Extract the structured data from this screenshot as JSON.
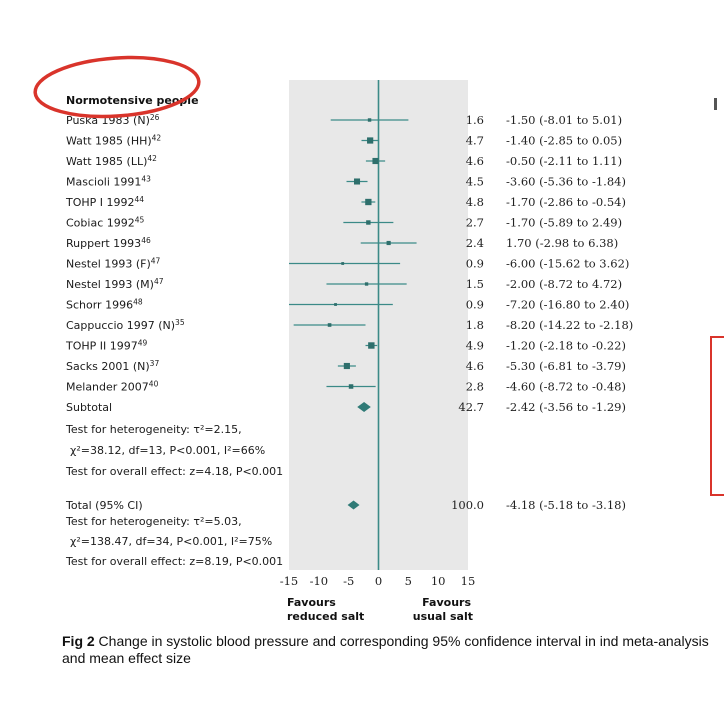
{
  "chart_data": {
    "type": "forest",
    "group_heading": "Normotensive people",
    "x_ticks": [
      -15,
      -10,
      -5,
      0,
      5,
      10,
      15
    ],
    "xlim": [
      -15,
      15
    ],
    "favours_left": [
      "Favours",
      "reduced salt"
    ],
    "favours_right": [
      "Favours",
      "usual salt"
    ],
    "studies": [
      {
        "label": "Puska 1983 (N)",
        "ref": "26",
        "weight": "1.6",
        "estimate": -1.5,
        "ci_low": -8.01,
        "ci_high": 5.01,
        "ci_text": "-1.50 (-8.01 to 5.01)"
      },
      {
        "label": "Watt 1985 (HH)",
        "ref": "42",
        "weight": "4.7",
        "estimate": -1.4,
        "ci_low": -2.85,
        "ci_high": 0.05,
        "ci_text": "-1.40 (-2.85 to 0.05)"
      },
      {
        "label": "Watt 1985 (LL)",
        "ref": "42",
        "weight": "4.6",
        "estimate": -0.5,
        "ci_low": -2.11,
        "ci_high": 1.11,
        "ci_text": "-0.50 (-2.11 to 1.11)"
      },
      {
        "label": "Mascioli 1991",
        "ref": "43",
        "weight": "4.5",
        "estimate": -3.6,
        "ci_low": -5.36,
        "ci_high": -1.84,
        "ci_text": "-3.60 (-5.36 to -1.84)"
      },
      {
        "label": "TOHP I 1992",
        "ref": "44",
        "weight": "4.8",
        "estimate": -1.7,
        "ci_low": -2.86,
        "ci_high": -0.54,
        "ci_text": "-1.70 (-2.86 to -0.54)"
      },
      {
        "label": "Cobiac 1992",
        "ref": "45",
        "weight": "2.7",
        "estimate": -1.7,
        "ci_low": -5.89,
        "ci_high": 2.49,
        "ci_text": "-1.70 (-5.89 to 2.49)"
      },
      {
        "label": "Ruppert 1993",
        "ref": "46",
        "weight": "2.4",
        "estimate": 1.7,
        "ci_low": -2.98,
        "ci_high": 6.38,
        "ci_text": "1.70 (-2.98 to 6.38)"
      },
      {
        "label": "Nestel 1993 (F)",
        "ref": "47",
        "weight": "0.9",
        "estimate": -6.0,
        "ci_low": -15.62,
        "ci_high": 3.62,
        "ci_text": "-6.00 (-15.62 to 3.62)"
      },
      {
        "label": "Nestel 1993 (M)",
        "ref": "47",
        "weight": "1.5",
        "estimate": -2.0,
        "ci_low": -8.72,
        "ci_high": 4.72,
        "ci_text": "-2.00 (-8.72 to 4.72)"
      },
      {
        "label": "Schorr 1996",
        "ref": "48",
        "weight": "0.9",
        "estimate": -7.2,
        "ci_low": -16.8,
        "ci_high": 2.4,
        "ci_text": "-7.20 (-16.80 to 2.40)"
      },
      {
        "label": "Cappuccio 1997 (N)",
        "ref": "35",
        "weight": "1.8",
        "estimate": -8.2,
        "ci_low": -14.22,
        "ci_high": -2.18,
        "ci_text": "-8.20 (-14.22 to -2.18)"
      },
      {
        "label": "TOHP II 1997",
        "ref": "49",
        "weight": "4.9",
        "estimate": -1.2,
        "ci_low": -2.18,
        "ci_high": -0.22,
        "ci_text": "-1.20 (-2.18 to -0.22)"
      },
      {
        "label": "Sacks 2001 (N)",
        "ref": "37",
        "weight": "4.6",
        "estimate": -5.3,
        "ci_low": -6.81,
        "ci_high": -3.79,
        "ci_text": "-5.30 (-6.81 to -3.79)"
      },
      {
        "label": "Melander 2007",
        "ref": "40",
        "weight": "2.8",
        "estimate": -4.6,
        "ci_low": -8.72,
        "ci_high": -0.48,
        "ci_text": "-4.60 (-8.72 to -0.48)"
      }
    ],
    "subtotal": {
      "label": "Subtotal",
      "weight": "42.7",
      "estimate": -2.42,
      "ci_low": -3.56,
      "ci_high": -1.29,
      "ci_text": "-2.42 (-3.56 to -1.29)"
    },
    "subtotal_notes": [
      "Test for heterogeneity: τ²=2.15,",
      "χ²=38.12, df=13, P<0.001, I²=66%",
      "Test for overall effect: z=4.18, P<0.001"
    ],
    "total": {
      "label": "Total (95% CI)",
      "weight": "100.0",
      "estimate": -4.18,
      "ci_low": -5.18,
      "ci_high": -3.18,
      "ci_text": "-4.18 (-5.18 to -3.18)"
    },
    "total_notes": [
      "Test for heterogeneity: τ²=5.03,",
      "χ²=138.47, df=34, P<0.001, I²=75%",
      "Test for overall effect: z=8.19, P<0.001"
    ],
    "colors": {
      "band": "#e8e8e8",
      "line": "#3b8a87",
      "marker": "#2e6f6c",
      "diamond": "#2f7a76",
      "highlight": "#d9342b"
    }
  },
  "caption": {
    "prefix": "Fig 2",
    "text": " Change in systolic blood pressure and corresponding 95% confidence interval in ind meta-analysis and mean effect size"
  }
}
